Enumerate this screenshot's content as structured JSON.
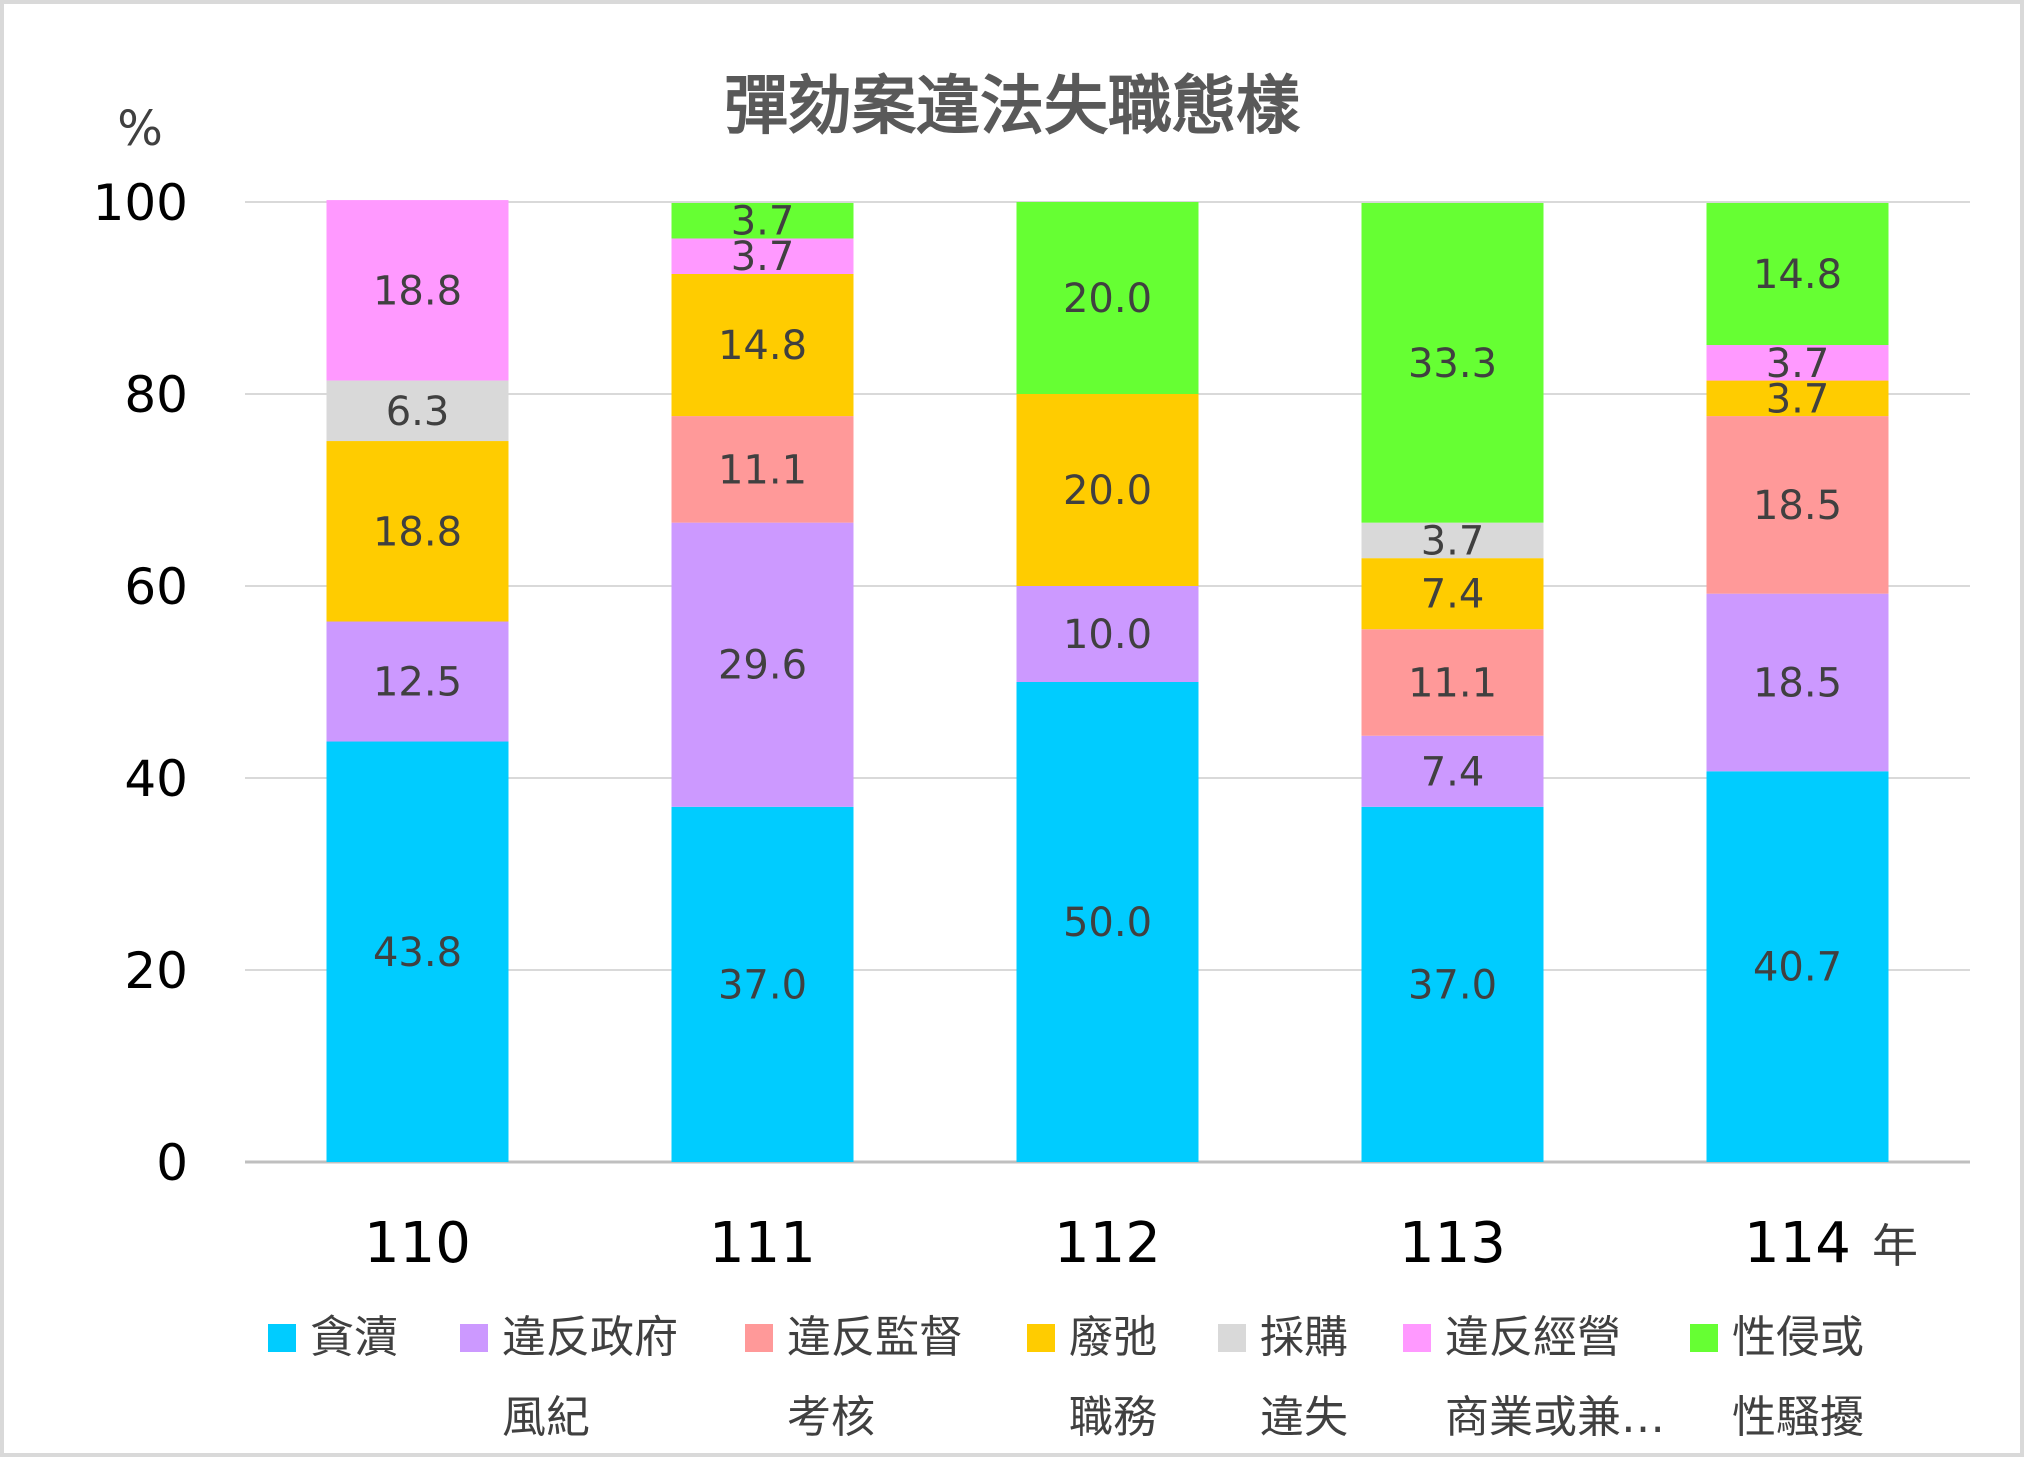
{
  "chart_data": {
    "type": "bar",
    "stacked": true,
    "title": "彈劾案違法失職態樣",
    "ylabel": "%",
    "xlabel": "年",
    "ylim": [
      0,
      100
    ],
    "yticks": [
      "0",
      "20",
      "40",
      "60",
      "80",
      "100"
    ],
    "grid": true,
    "legend_position": "bottom",
    "categories": [
      "110",
      "111",
      "112",
      "113",
      "114"
    ],
    "series": [
      {
        "name": "貪瀆",
        "legend_lines": [
          "貪瀆"
        ],
        "color": "#00ccff",
        "values": [
          43.8,
          37.0,
          50.0,
          37.0,
          40.7
        ],
        "labels": [
          "43.8",
          "37.0",
          "50.0",
          "37.0",
          "40.7"
        ]
      },
      {
        "name": "違反政府風紀",
        "legend_lines": [
          "違反政府",
          "風紀"
        ],
        "color": "#cc99ff",
        "values": [
          12.5,
          29.6,
          10.0,
          7.4,
          18.5
        ],
        "labels": [
          "12.5",
          "29.6",
          "10.0",
          "7.4",
          "18.5"
        ]
      },
      {
        "name": "違反監督考核",
        "legend_lines": [
          "違反監督",
          "考核"
        ],
        "color": "#ff9999",
        "values": [
          0,
          11.1,
          0,
          11.1,
          18.5
        ],
        "labels": [
          "",
          "11.1",
          "",
          "11.1",
          "18.5"
        ]
      },
      {
        "name": "廢弛職務",
        "legend_lines": [
          "廢弛",
          "職務"
        ],
        "color": "#ffcc00",
        "values": [
          18.8,
          14.8,
          20.0,
          7.4,
          3.7
        ],
        "labels": [
          "18.8",
          "14.8",
          "20.0",
          "7.4",
          "3.7"
        ]
      },
      {
        "name": "採購違失",
        "legend_lines": [
          "採購",
          "違失"
        ],
        "color": "#d9d9d9",
        "values": [
          6.3,
          0,
          0,
          3.7,
          0
        ],
        "labels": [
          "6.3",
          "",
          "",
          "3.7",
          ""
        ]
      },
      {
        "name": "違反經營商業或兼…",
        "legend_lines": [
          "違反經營",
          "商業或兼…"
        ],
        "color": "#ff99ff",
        "values": [
          18.8,
          3.7,
          0,
          0,
          3.7
        ],
        "labels": [
          "18.8",
          "3.7",
          "",
          "",
          "3.7"
        ]
      },
      {
        "name": "性侵或性騷擾",
        "legend_lines": [
          "性侵或",
          "性騷擾"
        ],
        "color": "#66ff33",
        "values": [
          0,
          3.7,
          20.0,
          33.3,
          14.8
        ],
        "labels": [
          "",
          "3.7",
          "20.0",
          "33.3",
          "14.8"
        ]
      }
    ]
  }
}
